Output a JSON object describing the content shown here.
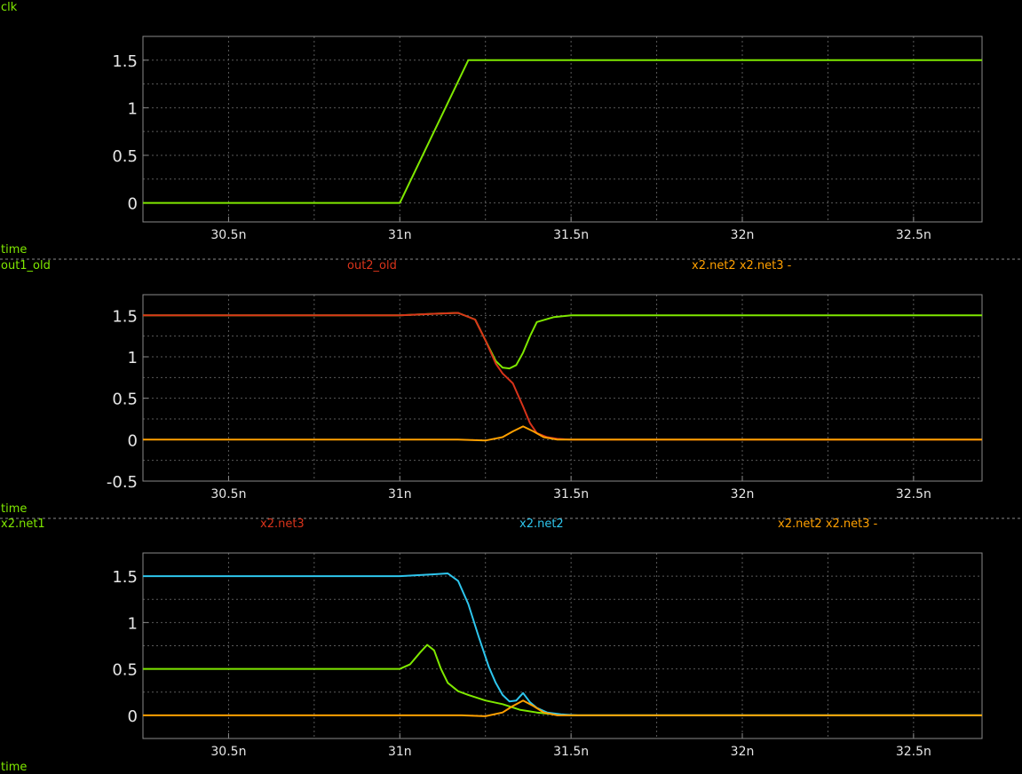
{
  "colors": {
    "background": "#000000",
    "frame": "#8a8a8a",
    "grid": "#5a5a5a",
    "separator": "#8a8a8a",
    "label_green": "#7fe800",
    "green": "#7fe800",
    "red": "#d9331a",
    "orange": "#ffa000",
    "cyan": "#2ec6ee",
    "tick_text": "#e6e6e6"
  },
  "chart_data": [
    {
      "type": "line",
      "xlabel": "time",
      "x_unit": "ns",
      "xlim": [
        30.25,
        32.7
      ],
      "ylim": [
        -0.2,
        1.75
      ],
      "xticks": [
        30.5,
        31.0,
        31.5,
        32.0,
        32.5
      ],
      "xtick_labels": [
        "30.5n",
        "31n",
        "31.5n",
        "32n",
        "32.5n"
      ],
      "yticks": [
        0,
        0.5,
        1,
        1.5
      ],
      "ytick_labels": [
        "0",
        "0.5",
        "1",
        "1.5"
      ],
      "grid": true,
      "legend": [
        {
          "text": "clk",
          "color": "#7fe800"
        }
      ],
      "series": [
        {
          "name": "clk",
          "color": "#7fe800",
          "x": [
            30.25,
            31.0,
            31.2,
            32.7
          ],
          "y": [
            0,
            0,
            1.5,
            1.5
          ]
        }
      ]
    },
    {
      "type": "line",
      "xlabel": "time",
      "x_unit": "ns",
      "xlim": [
        30.25,
        32.7
      ],
      "ylim": [
        -0.5,
        1.75
      ],
      "xticks": [
        30.5,
        31.0,
        31.5,
        32.0,
        32.5
      ],
      "xtick_labels": [
        "30.5n",
        "31n",
        "31.5n",
        "32n",
        "32.5n"
      ],
      "yticks": [
        -0.5,
        0,
        0.5,
        1,
        1.5
      ],
      "ytick_labels": [
        "-0.5",
        "0",
        "0.5",
        "1",
        "1.5"
      ],
      "grid": true,
      "legend": [
        {
          "text": "out1_old",
          "color": "#7fe800"
        },
        {
          "text": "out2_old",
          "color": "#d9331a"
        },
        {
          "text": "x2.net2 x2.net3 -",
          "color": "#ffa000"
        }
      ],
      "series": [
        {
          "name": "out1_old",
          "color": "#7fe800",
          "x": [
            30.25,
            31.0,
            31.1,
            31.17,
            31.22,
            31.25,
            31.28,
            31.3,
            31.32,
            31.34,
            31.36,
            31.38,
            31.4,
            31.45,
            31.5,
            32.7
          ],
          "y": [
            1.5,
            1.5,
            1.52,
            1.53,
            1.45,
            1.2,
            0.95,
            0.87,
            0.86,
            0.9,
            1.05,
            1.25,
            1.42,
            1.48,
            1.5,
            1.5
          ]
        },
        {
          "name": "out2_old",
          "color": "#d9331a",
          "x": [
            30.25,
            31.0,
            31.1,
            31.17,
            31.22,
            31.25,
            31.28,
            31.3,
            31.33,
            31.36,
            31.38,
            31.4,
            31.43,
            31.46,
            31.5,
            32.7
          ],
          "y": [
            1.5,
            1.5,
            1.52,
            1.53,
            1.45,
            1.2,
            0.92,
            0.8,
            0.68,
            0.4,
            0.2,
            0.08,
            0.03,
            0.01,
            0.0,
            0.0
          ]
        },
        {
          "name": "x2.net2 x2.net3 -",
          "color": "#ffa000",
          "x": [
            30.25,
            31.17,
            31.25,
            31.3,
            31.33,
            31.36,
            31.39,
            31.42,
            31.46,
            32.7
          ],
          "y": [
            0,
            0,
            -0.01,
            0.03,
            0.1,
            0.16,
            0.1,
            0.03,
            0.0,
            0.0
          ]
        }
      ]
    },
    {
      "type": "line",
      "xlabel": "time",
      "x_unit": "ns",
      "xlim": [
        30.25,
        32.7
      ],
      "ylim": [
        -0.25,
        1.75
      ],
      "xticks": [
        30.5,
        31.0,
        31.5,
        32.0,
        32.5
      ],
      "xtick_labels": [
        "30.5n",
        "31n",
        "31.5n",
        "32n",
        "32.5n"
      ],
      "yticks": [
        0,
        0.5,
        1,
        1.5
      ],
      "ytick_labels": [
        "0",
        "0.5",
        "1",
        "1.5"
      ],
      "grid": true,
      "legend": [
        {
          "text": "x2.net1",
          "color": "#7fe800"
        },
        {
          "text": "x2.net3",
          "color": "#d9331a"
        },
        {
          "text": "x2.net2",
          "color": "#2ec6ee"
        },
        {
          "text": "x2.net2 x2.net3 -",
          "color": "#ffa000"
        }
      ],
      "series": [
        {
          "name": "x2.net1",
          "color": "#7fe800",
          "x": [
            30.25,
            31.0,
            31.03,
            31.06,
            31.08,
            31.1,
            31.12,
            31.14,
            31.17,
            31.2,
            31.25,
            31.3,
            31.35,
            31.4,
            31.45,
            31.5,
            32.7
          ],
          "y": [
            0.5,
            0.5,
            0.55,
            0.68,
            0.76,
            0.7,
            0.5,
            0.35,
            0.26,
            0.22,
            0.16,
            0.12,
            0.06,
            0.03,
            0.01,
            0.0,
            0.0
          ]
        },
        {
          "name": "x2.net2",
          "color": "#2ec6ee",
          "x": [
            30.25,
            31.0,
            31.1,
            31.14,
            31.17,
            31.2,
            31.23,
            31.26,
            31.28,
            31.3,
            31.32,
            31.34,
            31.36,
            31.38,
            31.4,
            31.43,
            31.47,
            31.52,
            32.7
          ],
          "y": [
            1.5,
            1.5,
            1.52,
            1.53,
            1.45,
            1.2,
            0.85,
            0.52,
            0.35,
            0.22,
            0.15,
            0.16,
            0.24,
            0.14,
            0.08,
            0.03,
            0.01,
            0.0,
            0.0
          ]
        },
        {
          "name": "x2.net2 x2.net3 -",
          "color": "#ffa000",
          "x": [
            30.25,
            31.18,
            31.25,
            31.3,
            31.33,
            31.36,
            31.39,
            31.42,
            31.46,
            32.7
          ],
          "y": [
            0,
            0,
            -0.01,
            0.03,
            0.1,
            0.16,
            0.1,
            0.03,
            0.0,
            0.0
          ]
        }
      ]
    }
  ]
}
